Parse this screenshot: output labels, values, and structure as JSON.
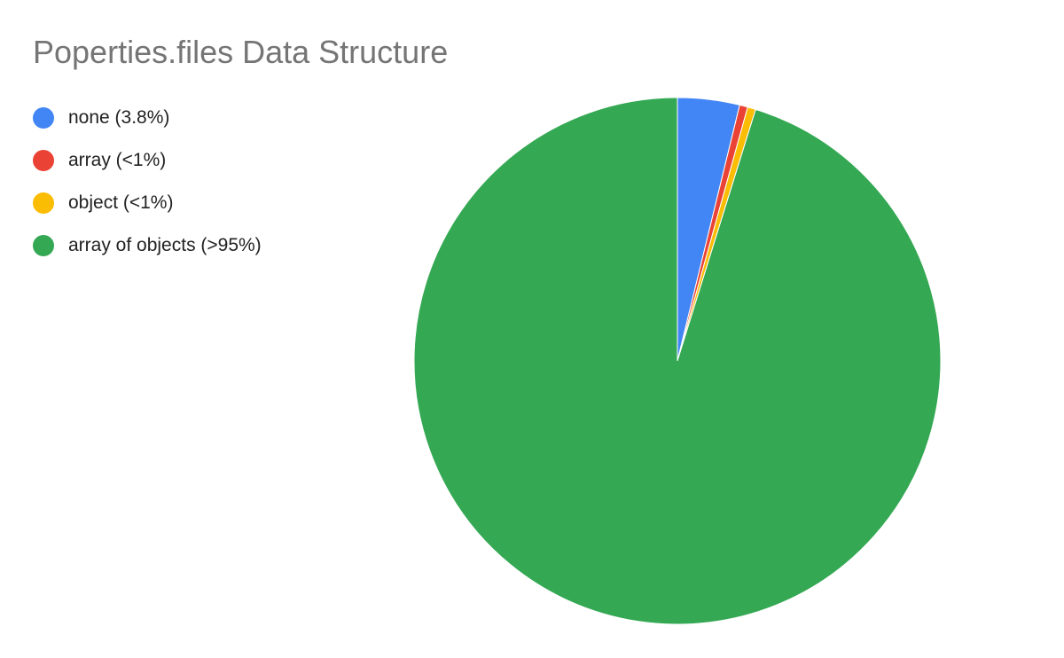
{
  "chart_data": {
    "type": "pie",
    "title": "Poperties.files Data Structure",
    "legend_position": "left",
    "slices": [
      {
        "label": "none (3.8%)",
        "value": 3.8,
        "color": "#4285F4"
      },
      {
        "label": "array (<1%)",
        "value": 0.5,
        "color": "#EA4335"
      },
      {
        "label": "object (<1%)",
        "value": 0.5,
        "color": "#FBBC04"
      },
      {
        "label": "array of objects (>95%)",
        "value": 95.2,
        "color": "#34A853"
      }
    ]
  }
}
